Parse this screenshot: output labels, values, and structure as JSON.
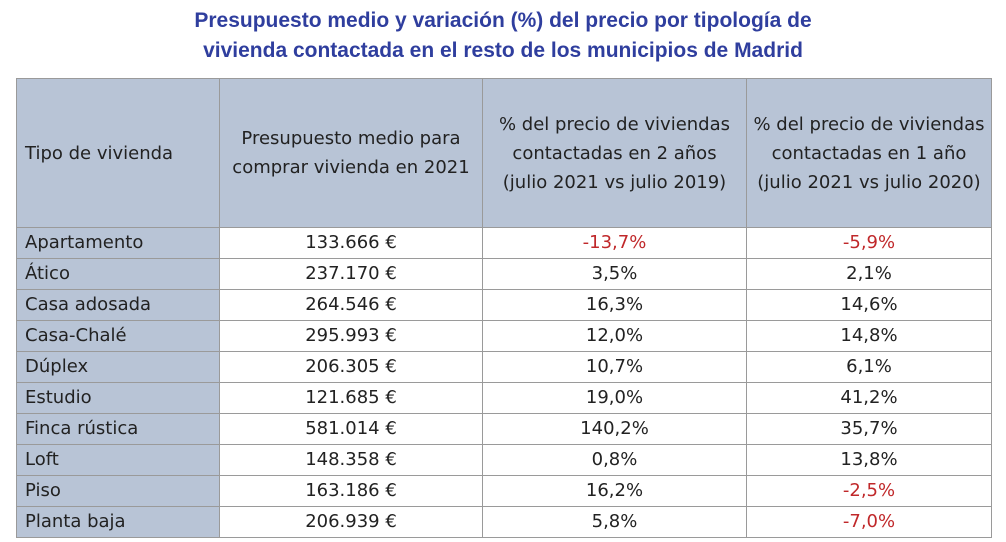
{
  "title": {
    "line1": "Presupuesto medio y variación (%) del precio por tipología de",
    "line2": "vivienda contactada en el resto de los municipios de Madrid"
  },
  "colors": {
    "title": "#2f3e9e",
    "header_bg": "#b8c4d6",
    "negative": "#c0282a",
    "border": "#9a9a9a"
  },
  "chart_data": {
    "type": "table",
    "title": "Presupuesto medio y variación (%) del precio por tipología de vivienda contactada en el resto de los municipios de Madrid",
    "columns": [
      "Tipo de vivienda",
      "Presupuesto medio para comprar vivienda en 2021",
      "% del precio de viviendas contactadas en 2 años (julio 2021 vs julio 2019)",
      "% del precio de viviendas contactadas en 1 año (julio 2021 vs julio 2020)"
    ],
    "rows": [
      {
        "tipo": "Apartamento",
        "presupuesto": "133.666 €",
        "var2": "-13,7%",
        "var1": "-5,9%"
      },
      {
        "tipo": "Ático",
        "presupuesto": "237.170 €",
        "var2": "3,5%",
        "var1": "2,1%"
      },
      {
        "tipo": "Casa adosada",
        "presupuesto": "264.546 €",
        "var2": "16,3%",
        "var1": "14,6%"
      },
      {
        "tipo": "Casa-Chalé",
        "presupuesto": "295.993 €",
        "var2": "12,0%",
        "var1": "14,8%"
      },
      {
        "tipo": "Dúplex",
        "presupuesto": "206.305 €",
        "var2": "10,7%",
        "var1": "6,1%"
      },
      {
        "tipo": "Estudio",
        "presupuesto": "121.685 €",
        "var2": "19,0%",
        "var1": "41,2%"
      },
      {
        "tipo": "Finca rústica",
        "presupuesto": "581.014 €",
        "var2": "140,2%",
        "var1": "35,7%"
      },
      {
        "tipo": "Loft",
        "presupuesto": "148.358 €",
        "var2": "0,8%",
        "var1": "13,8%"
      },
      {
        "tipo": "Piso",
        "presupuesto": "163.186 €",
        "var2": "16,2%",
        "var1": "-2,5%"
      },
      {
        "tipo": "Planta baja",
        "presupuesto": "206.939 €",
        "var2": "5,8%",
        "var1": "-7,0%"
      }
    ]
  }
}
